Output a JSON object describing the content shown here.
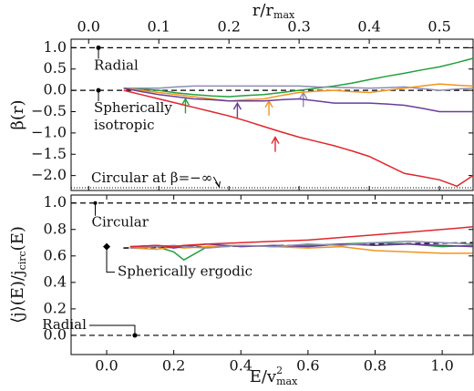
{
  "chart_data": [
    {
      "type": "line",
      "xlabel": {
        "text": "r/r",
        "sub": "max"
      },
      "ylabel": "β(r)",
      "xlim": [
        -0.025,
        0.548
      ],
      "xticks": [
        {
          "value": 0,
          "label": "0.0"
        },
        0.1,
        0.2,
        0.3,
        0.4,
        0.5
      ],
      "ylim": [
        -2.35,
        1.2
      ],
      "yticks": [
        {
          "value": 1,
          "label": "1.0"
        },
        0.5,
        {
          "value": 0,
          "label": "0.0"
        },
        {
          "value": -0.5,
          "label": "−0.5"
        },
        {
          "value": -1,
          "label": "−1.0"
        },
        {
          "value": -1.5,
          "label": "−1.5"
        },
        {
          "value": -2,
          "label": "−2.0"
        }
      ],
      "hlines": [
        1.0,
        0.0
      ],
      "x": [
        0.05,
        0.075,
        0.1,
        0.125,
        0.15,
        0.175,
        0.2,
        0.225,
        0.25,
        0.275,
        0.3,
        0.325,
        0.35,
        0.375,
        0.4,
        0.425,
        0.45,
        0.475,
        0.5,
        0.525,
        0.548
      ],
      "series": [
        {
          "color": "#22a03a",
          "values": [
            0.05,
            0.03,
            0.0,
            -0.06,
            -0.1,
            -0.13,
            -0.15,
            -0.12,
            -0.1,
            -0.05,
            0.0,
            0.05,
            0.1,
            0.17,
            0.25,
            0.33,
            0.4,
            0.48,
            0.55,
            0.65,
            0.75
          ],
          "arrow": [
            0.138,
            -0.2
          ]
        },
        {
          "color": "#8c8cb4",
          "values": [
            0.05,
            0.05,
            0.05,
            0.08,
            0.1,
            0.1,
            0.1,
            0.1,
            0.1,
            0.1,
            0.1,
            0.08,
            0.07,
            0.06,
            0.05,
            0.06,
            0.08,
            0.04,
            0.0,
            0.03,
            0.05
          ],
          "arrow": [
            0.306,
            -0.05
          ]
        },
        {
          "color": "#f0951e",
          "values": [
            0.05,
            0.0,
            -0.05,
            -0.1,
            -0.15,
            -0.2,
            -0.25,
            -0.22,
            -0.2,
            -0.12,
            -0.05,
            -0.02,
            0.0,
            -0.03,
            -0.05,
            0.0,
            0.05,
            0.1,
            0.15,
            0.12,
            0.1
          ],
          "arrow": [
            0.257,
            -0.25
          ]
        },
        {
          "color": "#6a3d9a",
          "values": [
            0.05,
            -0.03,
            -0.1,
            -0.15,
            -0.2,
            -0.22,
            -0.25,
            -0.25,
            -0.25,
            -0.22,
            -0.2,
            -0.25,
            -0.3,
            -0.3,
            -0.3,
            -0.32,
            -0.35,
            -0.42,
            -0.5,
            -0.5,
            -0.5
          ],
          "arrow": [
            0.212,
            -0.3
          ]
        },
        {
          "color": "#e0262c",
          "values": [
            0.0,
            -0.1,
            -0.2,
            -0.3,
            -0.4,
            -0.5,
            -0.6,
            -0.72,
            -0.85,
            -0.98,
            -1.1,
            -1.2,
            -1.3,
            -1.42,
            -1.55,
            -1.75,
            -1.95,
            -2.02,
            -2.1,
            -2.25,
            -2.0
          ],
          "arrow": [
            0.266,
            -1.1
          ]
        }
      ],
      "annotations": [
        {
          "text": "Radial",
          "x": 0.014,
          "y": 1.0
        },
        {
          "text": [
            "Spherically",
            "isotropic"
          ],
          "x": 0.014,
          "y": 0.0
        },
        {
          "text": "Circular at β=−∞",
          "x": 0.186
        }
      ]
    },
    {
      "type": "line",
      "xlabel": {
        "text": "E/v",
        "sup": "2",
        "sub": "max"
      },
      "ylabel": {
        "text": "⟨j⟩(E)/j",
        "sub": "circ",
        "after": "(E)"
      },
      "xlim": [
        -0.106,
        1.092
      ],
      "xticks": [
        {
          "value": 0,
          "label": "0.0"
        },
        0.2,
        0.4,
        0.6,
        0.8,
        {
          "value": 1,
          "label": "1.0"
        }
      ],
      "ylim": [
        -0.145,
        1.06
      ],
      "yticks": [
        {
          "value": 0,
          "label": "0.0"
        },
        0.2,
        0.4,
        0.6,
        0.8,
        {
          "value": 1,
          "label": "1.0"
        }
      ],
      "hlines": [
        1.0,
        0.0
      ],
      "x": [
        0.07,
        0.15,
        0.2,
        0.23,
        0.3,
        0.4,
        0.5,
        0.6,
        0.7,
        0.8,
        0.9,
        1.0,
        1.09
      ],
      "series": [
        {
          "color": "#22a03a",
          "values": [
            0.66,
            0.67,
            0.63,
            0.57,
            0.67,
            0.68,
            0.67,
            0.68,
            0.69,
            0.7,
            0.69,
            0.67,
            0.68
          ]
        },
        {
          "color": "#f0951e",
          "values": [
            0.66,
            0.65,
            0.67,
            0.66,
            0.67,
            0.68,
            0.67,
            0.66,
            0.67,
            0.64,
            0.63,
            0.62,
            0.62
          ]
        },
        {
          "color": "#6a3d9a",
          "values": [
            0.67,
            0.68,
            0.66,
            0.67,
            0.69,
            0.67,
            0.68,
            0.67,
            0.69,
            0.68,
            0.69,
            0.68,
            0.67
          ]
        },
        {
          "color": "#8c8cb4",
          "values": [
            0.66,
            0.67,
            0.68,
            0.67,
            0.66,
            0.68,
            0.67,
            0.69,
            0.68,
            0.7,
            0.71,
            0.7,
            0.69
          ]
        },
        {
          "color": "#e0262c",
          "values": [
            0.67,
            0.68,
            0.67,
            0.68,
            0.69,
            0.7,
            0.71,
            0.72,
            0.74,
            0.76,
            0.78,
            0.8,
            0.82
          ]
        }
      ],
      "reference_series": {
        "color": "#000000",
        "x": [
          0.05,
          1.09
        ],
        "values": [
          0.66,
          0.7
        ]
      },
      "annotations": [
        {
          "text": "Circular",
          "x": -0.034,
          "y": 1.0
        },
        {
          "text": "Spherically ergodic",
          "x": 0.0,
          "y": 0.67
        },
        {
          "text": "Radial",
          "x": 0.084,
          "y": 0.0
        }
      ]
    }
  ]
}
